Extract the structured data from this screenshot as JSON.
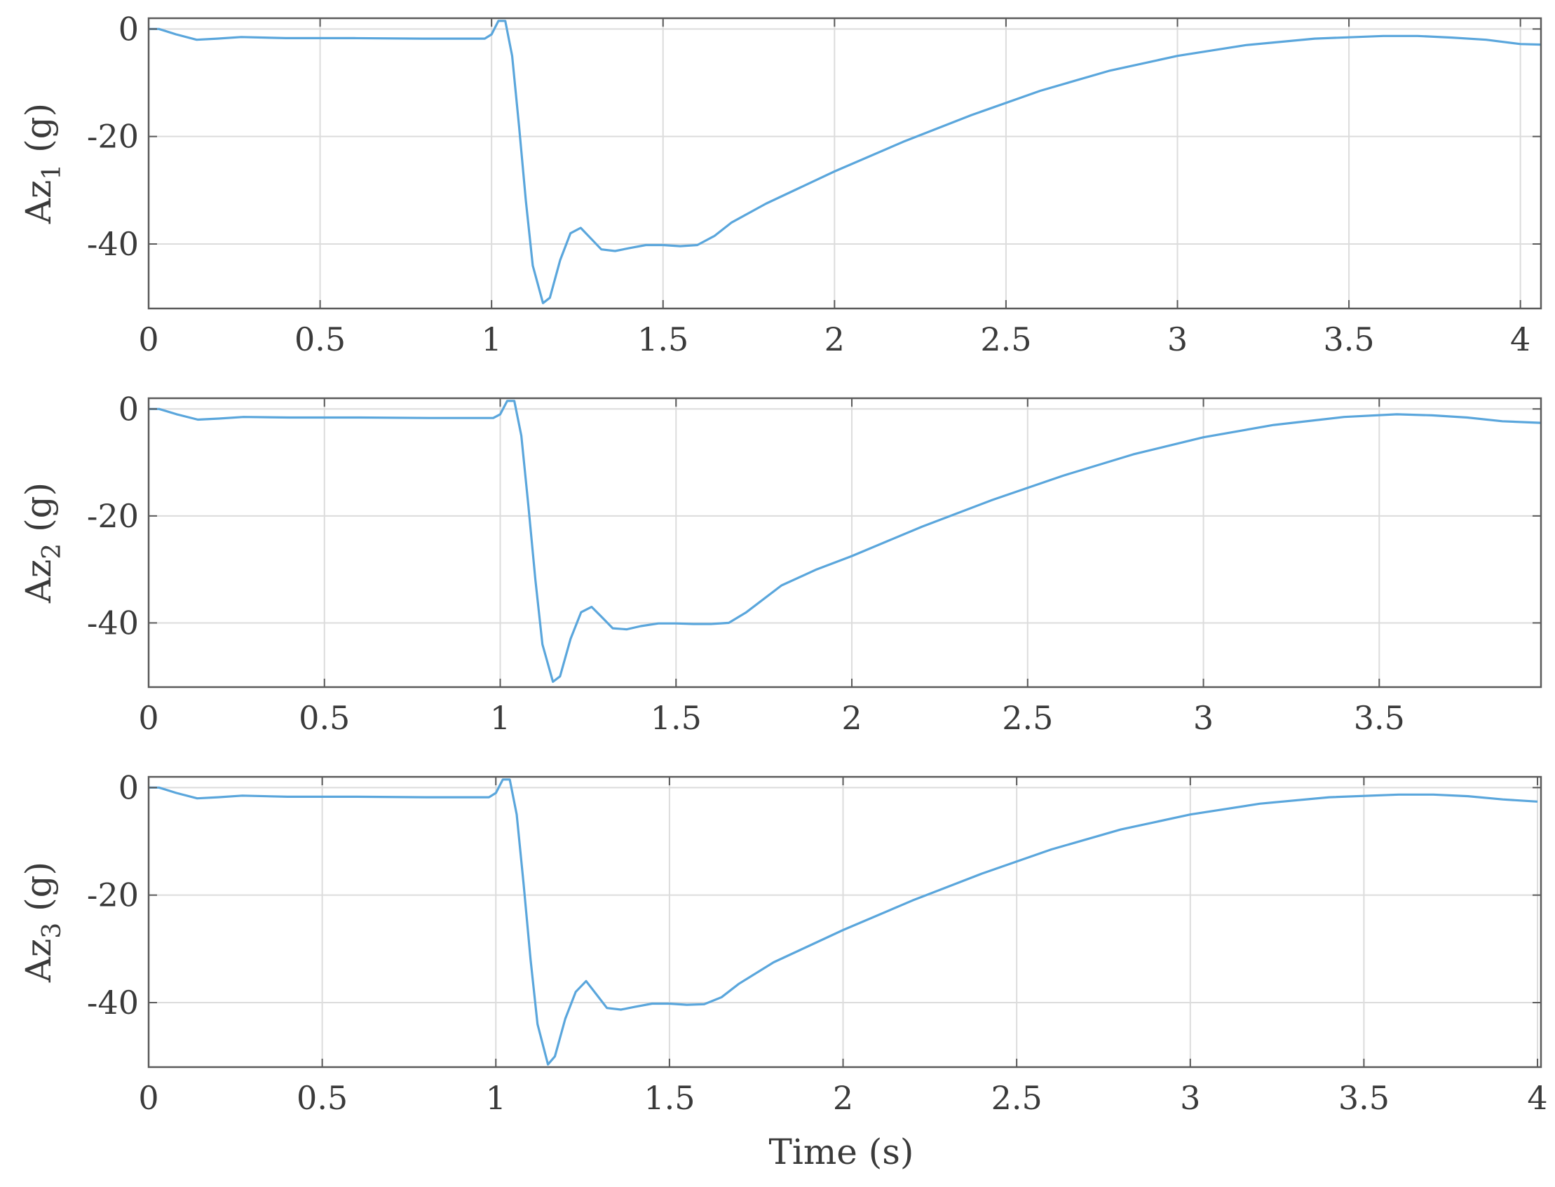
{
  "colors": {
    "line": "#5aa6dc",
    "frame": "#5a5a5a",
    "grid": "#dcdcdc"
  },
  "chart_data": [
    {
      "type": "line",
      "ylabel": {
        "base": "Az",
        "sub": "1",
        "unit": " (g)"
      },
      "xlabel": "",
      "xlim": [
        0,
        4.06
      ],
      "ylim": [
        -52,
        2
      ],
      "xticks": [
        0,
        0.5,
        1,
        1.5,
        2,
        2.5,
        3,
        3.5,
        4
      ],
      "xtick_labels": [
        "0",
        "0.5",
        "1",
        "1.5",
        "2",
        "2.5",
        "3",
        "3.5",
        "4"
      ],
      "yticks": [
        0,
        -20,
        -40
      ],
      "ytick_labels": [
        "0",
        "-20",
        "-40"
      ],
      "grid": true,
      "x": [
        0,
        0.03,
        0.08,
        0.14,
        0.2,
        0.27,
        0.4,
        0.6,
        0.8,
        0.98,
        1.0,
        1.02,
        1.04,
        1.06,
        1.08,
        1.1,
        1.12,
        1.15,
        1.17,
        1.2,
        1.23,
        1.26,
        1.29,
        1.32,
        1.36,
        1.4,
        1.45,
        1.5,
        1.55,
        1.6,
        1.65,
        1.7,
        1.8,
        1.9,
        2.0,
        2.2,
        2.4,
        2.6,
        2.8,
        3.0,
        3.2,
        3.4,
        3.6,
        3.7,
        3.8,
        3.9,
        4.0,
        4.06
      ],
      "values": [
        0,
        0,
        -1,
        -2,
        -1.8,
        -1.5,
        -1.7,
        -1.7,
        -1.8,
        -1.8,
        -1,
        1.5,
        1.5,
        -5,
        -18,
        -32,
        -44,
        -51,
        -50,
        -43,
        -38,
        -37,
        -39,
        -41,
        -41.3,
        -40.8,
        -40.2,
        -40.2,
        -40.4,
        -40.2,
        -38.5,
        -36,
        -32.5,
        -29.5,
        -26.5,
        -21,
        -16,
        -11.5,
        -7.8,
        -5,
        -3,
        -1.8,
        -1.3,
        -1.3,
        -1.6,
        -2,
        -2.8,
        -2.9
      ]
    },
    {
      "type": "line",
      "ylabel": {
        "base": "Az",
        "sub": "2",
        "unit": " (g)"
      },
      "xlabel": "",
      "xlim": [
        0,
        3.96
      ],
      "ylim": [
        -52,
        2
      ],
      "xticks": [
        0,
        0.5,
        1,
        1.5,
        2,
        2.5,
        3,
        3.5
      ],
      "xtick_labels": [
        "0",
        "0.5",
        "1",
        "1.5",
        "2",
        "2.5",
        "3",
        "3.5"
      ],
      "yticks": [
        0,
        -20,
        -40
      ],
      "ytick_labels": [
        "0",
        "-20",
        "-40"
      ],
      "grid": true,
      "x": [
        0,
        0.03,
        0.08,
        0.14,
        0.2,
        0.27,
        0.4,
        0.6,
        0.8,
        0.98,
        1.0,
        1.02,
        1.04,
        1.06,
        1.08,
        1.1,
        1.12,
        1.15,
        1.17,
        1.2,
        1.23,
        1.26,
        1.29,
        1.32,
        1.36,
        1.4,
        1.45,
        1.5,
        1.55,
        1.6,
        1.65,
        1.7,
        1.8,
        1.9,
        2.0,
        2.2,
        2.4,
        2.6,
        2.8,
        3.0,
        3.2,
        3.4,
        3.55,
        3.65,
        3.75,
        3.85,
        3.96
      ],
      "values": [
        0,
        0,
        -1,
        -2,
        -1.8,
        -1.5,
        -1.6,
        -1.6,
        -1.7,
        -1.7,
        -1,
        1.5,
        1.5,
        -5,
        -18,
        -32,
        -44,
        -51,
        -50,
        -43,
        -38,
        -37,
        -39,
        -41,
        -41.2,
        -40.6,
        -40.1,
        -40.1,
        -40.2,
        -40.2,
        -40,
        -38,
        -33,
        -30,
        -27.5,
        -22,
        -17,
        -12.5,
        -8.5,
        -5.3,
        -3,
        -1.5,
        -1,
        -1.2,
        -1.6,
        -2.3,
        -2.6
      ]
    },
    {
      "type": "line",
      "ylabel": {
        "base": "Az",
        "sub": "3",
        "unit": " (g)"
      },
      "xlabel": "Time (s)",
      "xlim": [
        0,
        4.01
      ],
      "ylim": [
        -52,
        2
      ],
      "xticks": [
        0,
        0.5,
        1,
        1.5,
        2,
        2.5,
        3,
        3.5,
        4
      ],
      "xtick_labels": [
        "0",
        "0.5",
        "1",
        "1.5",
        "2",
        "2.5",
        "3",
        "3.5",
        "4"
      ],
      "yticks": [
        0,
        -20,
        -40
      ],
      "ytick_labels": [
        "0",
        "-20",
        "-40"
      ],
      "grid": true,
      "x": [
        0,
        0.03,
        0.08,
        0.14,
        0.2,
        0.27,
        0.4,
        0.6,
        0.8,
        0.98,
        1.0,
        1.02,
        1.04,
        1.06,
        1.08,
        1.1,
        1.12,
        1.15,
        1.17,
        1.2,
        1.23,
        1.26,
        1.29,
        1.32,
        1.36,
        1.4,
        1.45,
        1.5,
        1.55,
        1.6,
        1.65,
        1.7,
        1.8,
        1.9,
        2.0,
        2.2,
        2.4,
        2.6,
        2.8,
        3.0,
        3.2,
        3.4,
        3.6,
        3.7,
        3.8,
        3.9,
        4.0
      ],
      "values": [
        0,
        0,
        -1,
        -2,
        -1.8,
        -1.5,
        -1.7,
        -1.7,
        -1.8,
        -1.8,
        -1,
        1.5,
        1.5,
        -5,
        -18,
        -32,
        -44,
        -51.5,
        -50,
        -43,
        -38,
        -36,
        -38.5,
        -41,
        -41.3,
        -40.8,
        -40.2,
        -40.2,
        -40.4,
        -40.3,
        -39,
        -36.5,
        -32.5,
        -29.5,
        -26.5,
        -21,
        -16,
        -11.5,
        -7.8,
        -5,
        -3,
        -1.8,
        -1.3,
        -1.3,
        -1.6,
        -2.2,
        -2.6
      ]
    }
  ]
}
